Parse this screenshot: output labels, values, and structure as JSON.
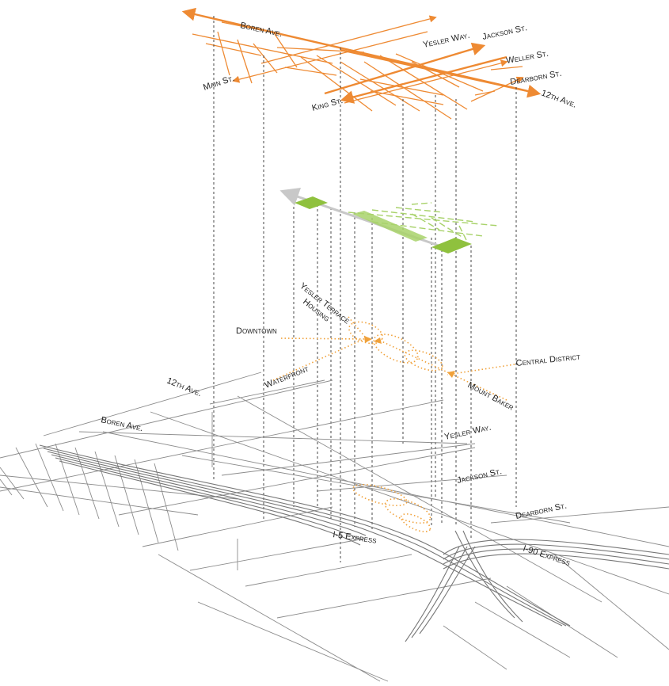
{
  "top_layer": {
    "labels": {
      "boren": "Boren Ave.",
      "main": "Main St.",
      "yesler": "Yesler Way.",
      "jackson": "Jackson St.",
      "weller": "Weller St.",
      "dearborn": "Dearborn St.",
      "twelfth": "12th Ave.",
      "king": "King St."
    }
  },
  "middle_layer": {
    "labels": {
      "yesler_terrace": "Yesler Terrace",
      "housing": "Housing",
      "downtown": "Downtown",
      "waterfront": "Waterfront",
      "central_district": "Central District",
      "mount_baker": "Mount Baker"
    }
  },
  "base_layer": {
    "labels": {
      "twelfth": "12th Ave.",
      "boren": "Boren Ave.",
      "yesler": "Yesler Way.",
      "jackson": "Jackson St.",
      "dearborn": "Dearborn St.",
      "i5": "I-5 Express",
      "i90": "I-90 Express"
    }
  },
  "colors": {
    "orange": "#ee8a33",
    "light_orange": "#f0a13a",
    "green": "#8fc13e",
    "light_green": "#a8d26a",
    "gray": "#8c8c8c"
  }
}
